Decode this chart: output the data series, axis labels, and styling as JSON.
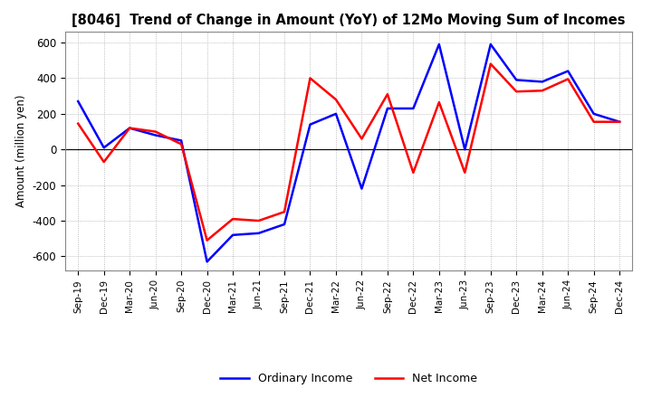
{
  "title": "[8046]  Trend of Change in Amount (YoY) of 12Mo Moving Sum of Incomes",
  "ylabel": "Amount (million yen)",
  "ylim": [
    -680,
    660
  ],
  "yticks": [
    -600,
    -400,
    -200,
    0,
    200,
    400,
    600
  ],
  "background_color": "#ffffff",
  "grid_color": "#aaaaaa",
  "x_labels": [
    "Sep-19",
    "Dec-19",
    "Mar-20",
    "Jun-20",
    "Sep-20",
    "Dec-20",
    "Mar-21",
    "Jun-21",
    "Sep-21",
    "Dec-21",
    "Mar-22",
    "Jun-22",
    "Sep-22",
    "Dec-22",
    "Mar-23",
    "Jun-23",
    "Sep-23",
    "Dec-23",
    "Mar-24",
    "Jun-24",
    "Sep-24",
    "Dec-24"
  ],
  "ordinary_income": [
    270,
    10,
    120,
    80,
    50,
    -630,
    -480,
    -470,
    -420,
    140,
    200,
    -220,
    230,
    230,
    590,
    0,
    590,
    390,
    380,
    440,
    200,
    155
  ],
  "net_income": [
    145,
    -70,
    120,
    100,
    30,
    -510,
    -390,
    -400,
    -350,
    400,
    280,
    60,
    310,
    -130,
    265,
    -130,
    480,
    325,
    330,
    395,
    155,
    155
  ],
  "ordinary_color": "#0000ff",
  "net_color": "#ff0000",
  "line_width": 1.8,
  "legend_labels": [
    "Ordinary Income",
    "Net Income"
  ]
}
